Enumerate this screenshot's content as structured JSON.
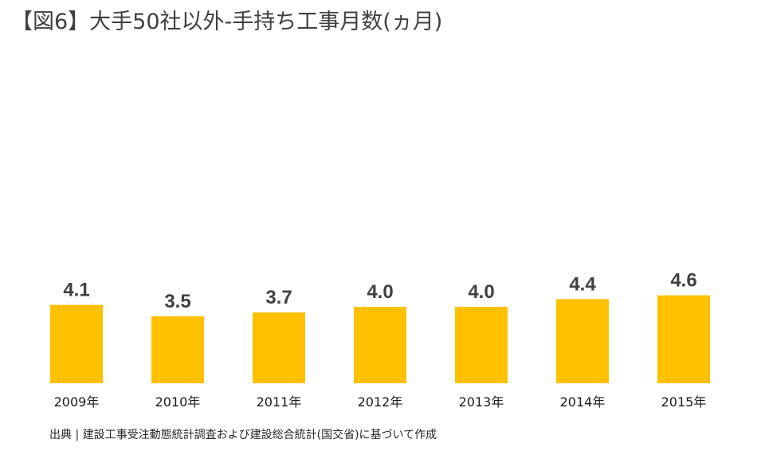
{
  "chart_data": {
    "type": "bar",
    "title": "【図6】大手50社以外-手持ち工事月数(ヵ月)",
    "categories": [
      "2009年",
      "2010年",
      "2011年",
      "2012年",
      "2013年",
      "2014年",
      "2015年"
    ],
    "values": [
      4.1,
      3.5,
      3.7,
      4.0,
      4.0,
      4.4,
      4.6
    ],
    "value_labels": [
      "4.1",
      "3.5",
      "3.7",
      "4.0",
      "4.0",
      "4.4",
      "4.6"
    ],
    "xlabel": "",
    "ylabel": "",
    "grid": false,
    "bar_color": "#FFC000"
  },
  "source_note": "出典 | 建設工事受注動態統計調査および建設総合統計(国交省)に基づいて作成"
}
